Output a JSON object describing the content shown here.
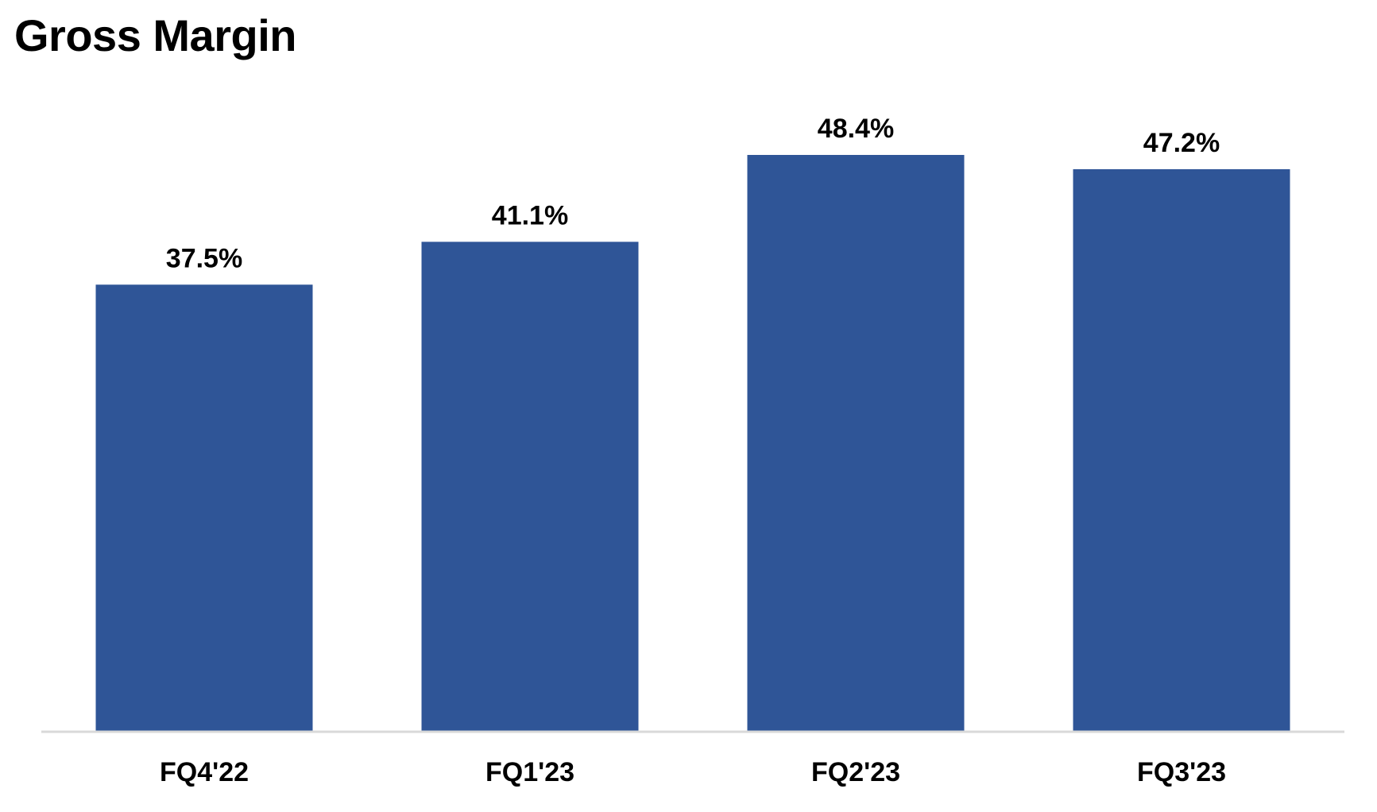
{
  "chart_data": {
    "type": "bar",
    "title": "Gross Margin",
    "categories": [
      "FQ4'22",
      "FQ1'23",
      "FQ2'23",
      "FQ3'23"
    ],
    "values": [
      37.5,
      41.1,
      48.4,
      47.2
    ],
    "value_labels": [
      "37.5%",
      "41.1%",
      "48.4%",
      "47.2%"
    ],
    "xlabel": "",
    "ylabel": "",
    "ylim": [
      0,
      48.4
    ],
    "grid": false,
    "legend": "none",
    "colors": {
      "bar": "#2F5597",
      "axis": "#D9D9D9",
      "text": "#000000"
    }
  }
}
